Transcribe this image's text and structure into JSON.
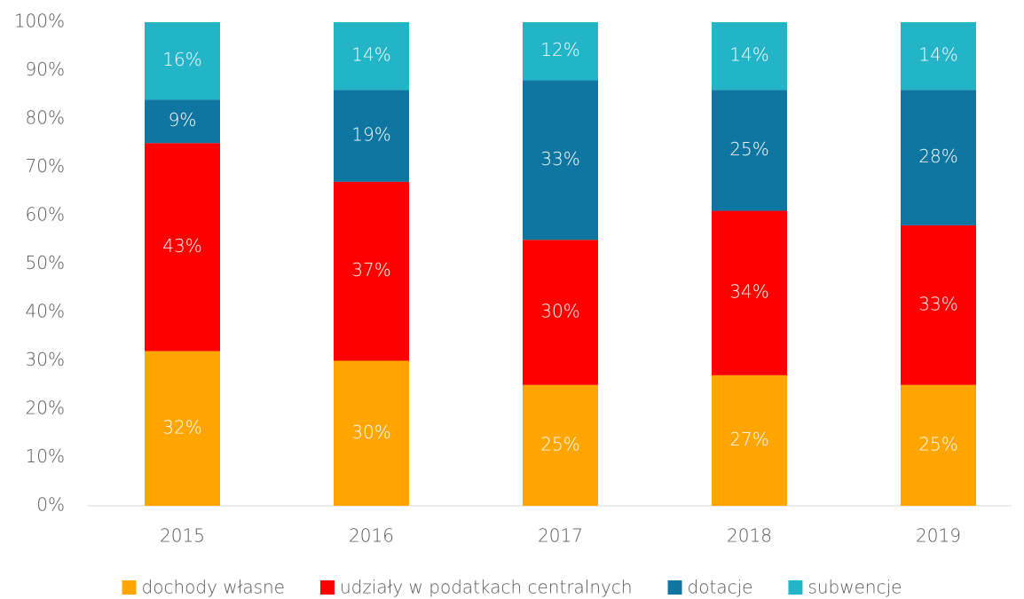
{
  "chart_data": {
    "type": "stacked_bar",
    "categories": [
      "2015",
      "2016",
      "2017",
      "2018",
      "2019"
    ],
    "series": [
      {
        "name": "dochody własne",
        "color": "#FFA500",
        "values": [
          32,
          30,
          25,
          27,
          25
        ],
        "value_labels": [
          "32%",
          "30%",
          "25%",
          "27%",
          "25%"
        ]
      },
      {
        "name": "udziały w podatkach centralnych",
        "color": "#FF0000",
        "values": [
          43,
          37,
          30,
          34,
          33
        ],
        "value_labels": [
          "43%",
          "37%",
          "30%",
          "34%",
          "33%"
        ]
      },
      {
        "name": "dotacje",
        "color": "#0E76A0",
        "values": [
          9,
          19,
          33,
          25,
          28
        ],
        "value_labels": [
          "9%",
          "19%",
          "33%",
          "25%",
          "28%"
        ]
      },
      {
        "name": "subwencje",
        "color": "#23B4C8",
        "values": [
          16,
          14,
          12,
          14,
          14
        ],
        "value_labels": [
          "16%",
          "14%",
          "12%",
          "14%",
          "14%"
        ]
      }
    ],
    "ylim": [
      0,
      100
    ],
    "yticks": [
      {
        "value": 0,
        "label": "0%"
      },
      {
        "value": 10,
        "label": "10%"
      },
      {
        "value": 20,
        "label": "20%"
      },
      {
        "value": 30,
        "label": "30%"
      },
      {
        "value": 40,
        "label": "40%"
      },
      {
        "value": 50,
        "label": "50%"
      },
      {
        "value": 60,
        "label": "60%"
      },
      {
        "value": 70,
        "label": "70%"
      },
      {
        "value": 80,
        "label": "80%"
      },
      {
        "value": 90,
        "label": "90%"
      },
      {
        "value": 100,
        "label": "100%"
      }
    ],
    "legend": "bottom"
  }
}
